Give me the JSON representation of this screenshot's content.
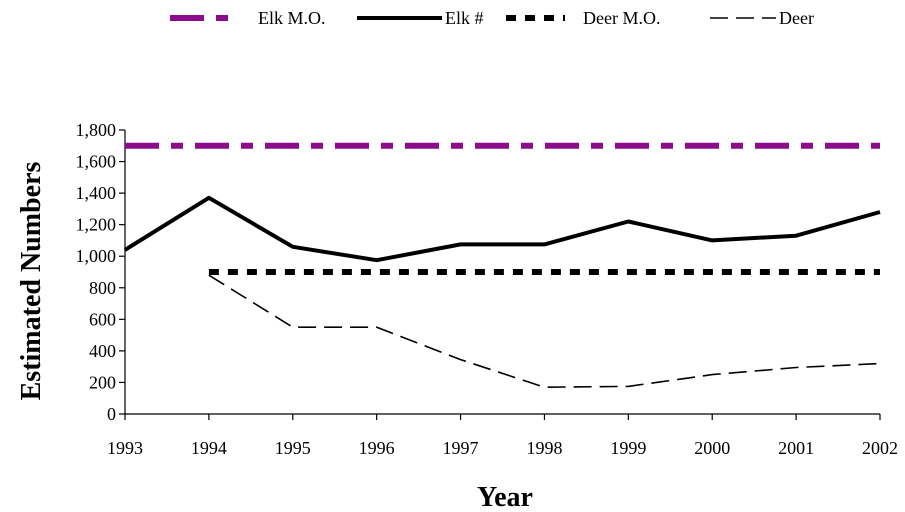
{
  "chart_data": {
    "type": "line",
    "title": "",
    "xlabel": "Year",
    "ylabel": "Estimated Numbers",
    "x": [
      "1993",
      "1994",
      "1995",
      "1996",
      "1997",
      "1998",
      "1999",
      "2000",
      "2001",
      "2002"
    ],
    "ylim": [
      0,
      1800
    ],
    "yticks": [
      "0",
      "200",
      "400",
      "600",
      "800",
      "1,000",
      "1,200",
      "1,400",
      "1,600",
      "1,800"
    ],
    "legend_position": "top",
    "series": [
      {
        "name": "Elk M.O.",
        "color": "#8b0d8b",
        "style": "dash-dot-thick",
        "values": [
          1700,
          1700,
          1700,
          1700,
          1700,
          1700,
          1700,
          1700,
          1700,
          1700
        ]
      },
      {
        "name": "Elk #",
        "color": "#000000",
        "style": "solid-thick",
        "values": [
          1040,
          1370,
          1060,
          975,
          1075,
          1075,
          1220,
          1100,
          1130,
          1280
        ]
      },
      {
        "name": "Deer M.O.",
        "color": "#000000",
        "style": "dotted-thick",
        "values": [
          null,
          900,
          900,
          900,
          900,
          900,
          900,
          900,
          900,
          900
        ]
      },
      {
        "name": "Deer",
        "color": "#000000",
        "style": "dashed-thin",
        "values": [
          null,
          880,
          550,
          550,
          345,
          170,
          175,
          250,
          295,
          320
        ]
      }
    ]
  }
}
